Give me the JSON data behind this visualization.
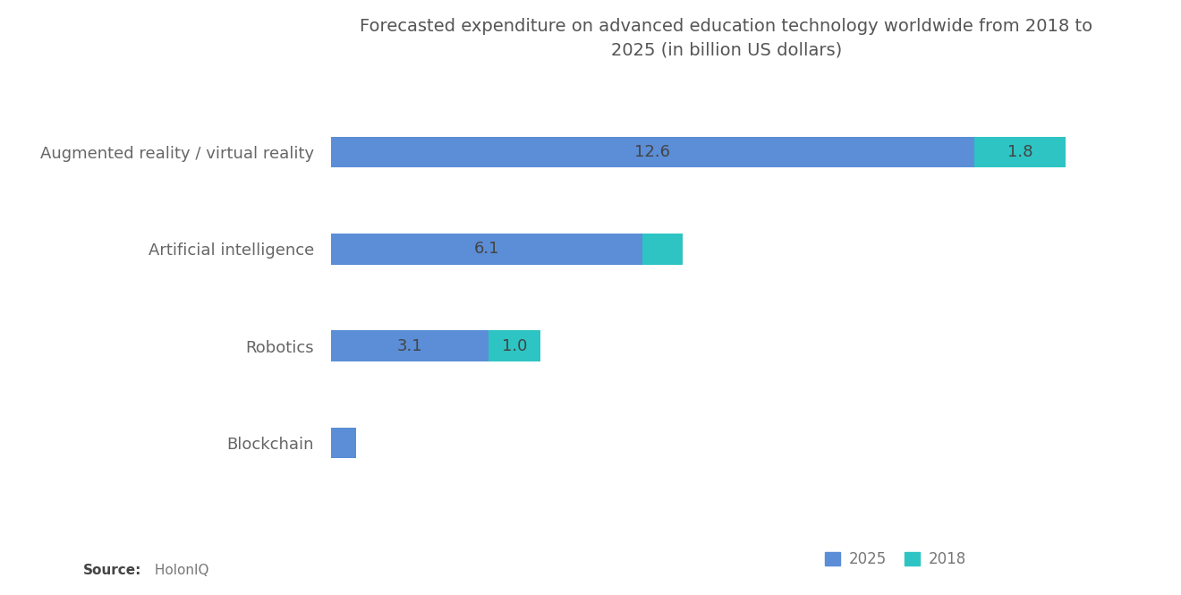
{
  "title": "Forecasted expenditure on advanced education technology worldwide from 2018 to\n2025 (in billion US dollars)",
  "categories": [
    "Augmented reality / virtual reality",
    "Artificial intelligence",
    "Robotics",
    "Blockchain"
  ],
  "values_2025": [
    12.6,
    6.1,
    3.1,
    0.5
  ],
  "values_2018": [
    1.8,
    0.8,
    1.0,
    0.0
  ],
  "color_2025": "#5B8ED6",
  "color_2018": "#2EC4C4",
  "background_color": "#ffffff",
  "title_fontsize": 14,
  "label_fontsize": 13,
  "bar_label_fontsize": 13,
  "bar_label_color": "#444444",
  "source_bold": "Source:",
  "source_rest": " HolonIQ",
  "legend_labels": [
    "2025",
    "2018"
  ],
  "xlim": [
    0,
    15.5
  ],
  "bar_height": 0.32
}
